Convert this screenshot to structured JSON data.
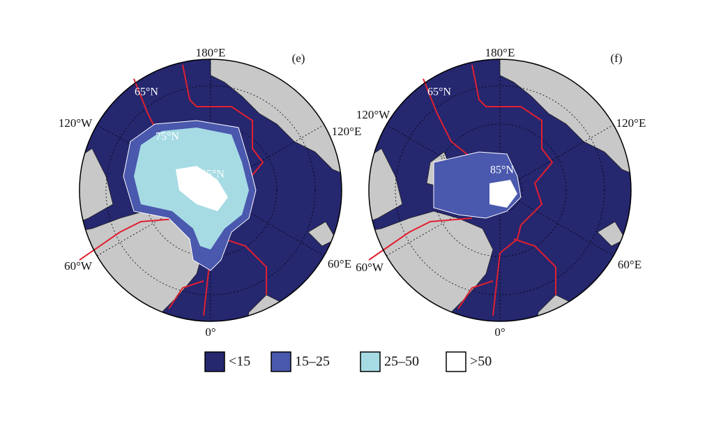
{
  "panels": [
    {
      "label": "(e)",
      "longitudes": [
        "180°E",
        "120°E",
        "60°E",
        "0°",
        "60°W",
        "120°W"
      ],
      "latitudes": [
        "65°N",
        "75°N",
        "85°N"
      ]
    },
    {
      "label": "(f)",
      "longitudes": [
        "180°E",
        "120°E",
        "60°E",
        "0°",
        "60°W",
        "120°W"
      ],
      "latitudes": [
        "65°N",
        "85°N"
      ]
    }
  ],
  "legend": [
    {
      "label": "<15",
      "color": "#25276f"
    },
    {
      "label": "15–25",
      "color": "#4a58ad"
    },
    {
      "label": "25–50",
      "color": "#a6dbe4"
    },
    {
      "label": ">50",
      "color": "#ffffff"
    }
  ]
}
